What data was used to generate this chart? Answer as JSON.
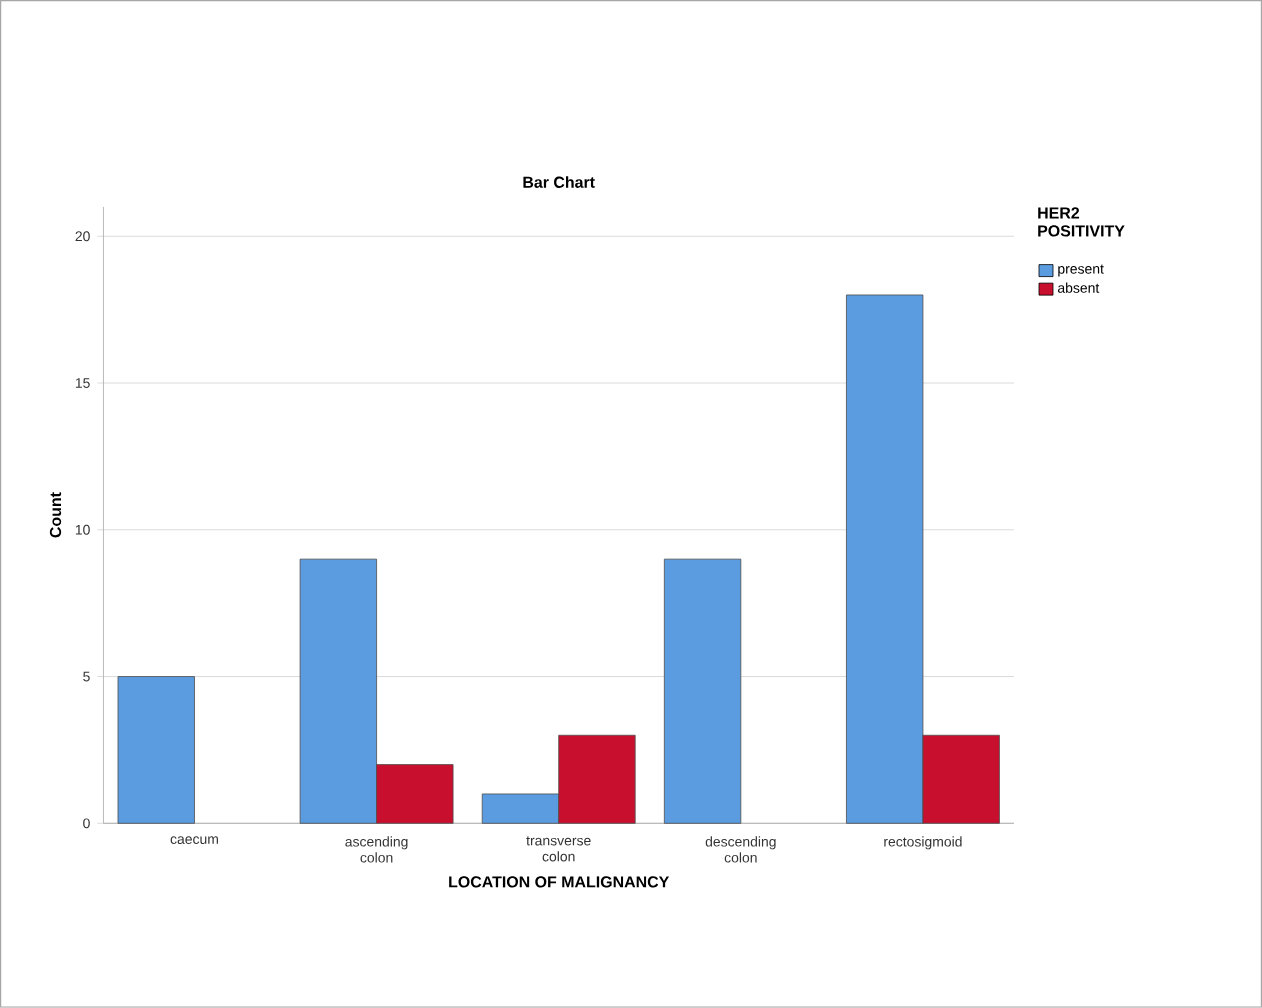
{
  "chart_data": {
    "type": "bar",
    "title": "Bar Chart",
    "xlabel": "LOCATION OF MALIGNANCY",
    "ylabel": "Count",
    "legend_title": "HER2 POSITIVITY",
    "categories": [
      "caecum",
      "ascending colon",
      "transverse colon",
      "descending colon",
      "rectosigmoid"
    ],
    "series": [
      {
        "name": "present",
        "color": "#5b9be0",
        "values": [
          5,
          9,
          1,
          9,
          18
        ]
      },
      {
        "name": "absent",
        "color": "#c8102e",
        "values": [
          null,
          2,
          3,
          null,
          3
        ]
      }
    ],
    "ylim": [
      0,
      21
    ],
    "yticks": [
      0,
      5,
      10,
      15,
      20
    ],
    "grid": "y",
    "legend": "top right"
  }
}
